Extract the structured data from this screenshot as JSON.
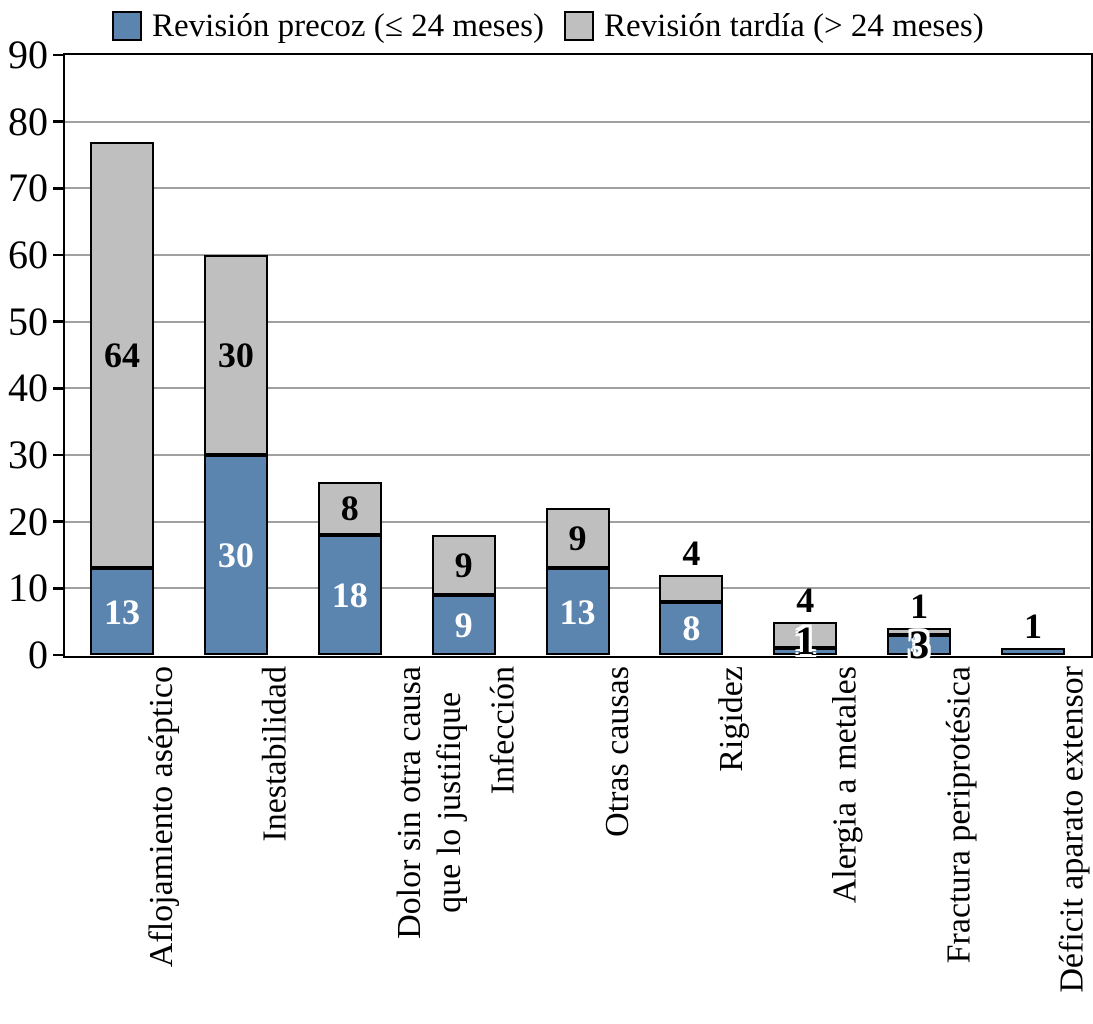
{
  "legend": {
    "items": [
      {
        "label": "Revisión precoz (≤ 24 meses)",
        "color": "#5b85af"
      },
      {
        "label": "Revisión tardía (> 24 meses)",
        "color": "#bfbfbf"
      }
    ]
  },
  "chart_data": {
    "type": "bar",
    "stacked": true,
    "title": "",
    "xlabel": "",
    "ylabel": "",
    "categories": [
      "Aflojamiento aséptico",
      "Inestabilidad",
      "Dolor sin otra causa\nque lo justifique",
      "Infección",
      "Otras causas",
      "Rigidez",
      "Alergia a metales",
      "Fractura periprotésica",
      "Déficit aparato extensor"
    ],
    "series": [
      {
        "name": "Revisión precoz (≤ 24 meses)",
        "color": "#5b85af",
        "label_color": "#ffffff",
        "values": [
          13,
          30,
          18,
          9,
          13,
          8,
          1,
          3,
          1
        ],
        "label_pos": [
          "inside",
          "inside",
          "inside",
          "inside",
          "inside",
          "inside",
          "overlap",
          "overlap",
          "above"
        ]
      },
      {
        "name": "Revisión tardía (> 24 meses)",
        "color": "#bfbfbf",
        "label_color": "#000000",
        "values": [
          64,
          30,
          8,
          9,
          9,
          4,
          4,
          1,
          0
        ],
        "label_pos": [
          "inside",
          "inside",
          "inside",
          "inside",
          "inside",
          "above",
          "above",
          "above",
          "none"
        ]
      }
    ],
    "totals": [
      77,
      60,
      26,
      18,
      22,
      12,
      5,
      4,
      1
    ],
    "ylim": [
      0,
      90
    ],
    "yticks": [
      0,
      10,
      20,
      30,
      40,
      50,
      60,
      70,
      80,
      90
    ],
    "grid": true,
    "legend_position": "top",
    "colors": {
      "grid": "#a0a0a0",
      "frame": "#000000",
      "bar_border": "#000000",
      "tick": "#000000"
    }
  }
}
